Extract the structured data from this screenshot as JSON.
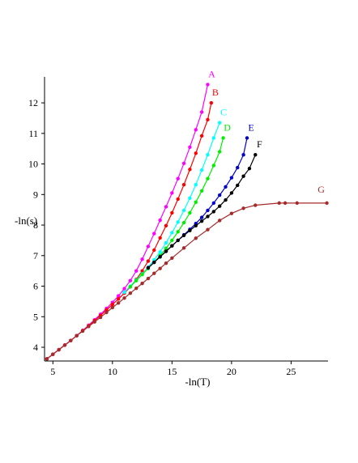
{
  "chart_data": {
    "type": "line",
    "title": "",
    "xlabel": "-ln(T)",
    "ylabel": "-ln(s)",
    "xlim": [
      4.3,
      28.1
    ],
    "ylim": [
      3.55,
      12.85
    ],
    "xticks": [
      5,
      10,
      15,
      20,
      25
    ],
    "yticks": [
      4,
      5,
      6,
      7,
      8,
      9,
      10,
      11,
      12
    ],
    "grid": false,
    "legend": "none (series letters printed next to the end of each curve)",
    "series": [
      {
        "name": "A",
        "color": "#ff00ff",
        "points": [
          [
            4.5,
            3.62
          ],
          [
            5.0,
            3.77
          ],
          [
            5.5,
            3.92
          ],
          [
            6.0,
            4.07
          ],
          [
            6.5,
            4.22
          ],
          [
            7.0,
            4.38
          ],
          [
            7.5,
            4.55
          ],
          [
            8.0,
            4.72
          ],
          [
            8.5,
            4.9
          ],
          [
            9.0,
            5.08
          ],
          [
            9.5,
            5.27
          ],
          [
            10.0,
            5.47
          ],
          [
            10.5,
            5.68
          ],
          [
            11.0,
            5.92
          ],
          [
            11.5,
            6.18
          ],
          [
            12.0,
            6.5
          ],
          [
            12.5,
            6.88
          ],
          [
            13.0,
            7.3
          ],
          [
            13.5,
            7.72
          ],
          [
            14.0,
            8.16
          ],
          [
            14.5,
            8.6
          ],
          [
            15.0,
            9.05
          ],
          [
            15.5,
            9.52
          ],
          [
            16.0,
            10.02
          ],
          [
            16.5,
            10.55
          ],
          [
            17.0,
            11.12
          ],
          [
            17.5,
            11.7
          ],
          [
            18.0,
            12.6
          ]
        ]
      },
      {
        "name": "B",
        "color": "#ff0000",
        "points": [
          [
            4.5,
            3.62
          ],
          [
            5.0,
            3.77
          ],
          [
            5.5,
            3.92
          ],
          [
            6.0,
            4.07
          ],
          [
            6.5,
            4.22
          ],
          [
            7.0,
            4.38
          ],
          [
            7.5,
            4.54
          ],
          [
            8.0,
            4.7
          ],
          [
            8.5,
            4.87
          ],
          [
            9.0,
            5.04
          ],
          [
            9.5,
            5.22
          ],
          [
            10.0,
            5.4
          ],
          [
            10.5,
            5.58
          ],
          [
            11.0,
            5.77
          ],
          [
            11.5,
            5.98
          ],
          [
            12.0,
            6.22
          ],
          [
            12.5,
            6.5
          ],
          [
            13.0,
            6.82
          ],
          [
            13.5,
            7.18
          ],
          [
            14.0,
            7.58
          ],
          [
            14.5,
            7.98
          ],
          [
            15.0,
            8.4
          ],
          [
            15.5,
            8.85
          ],
          [
            16.0,
            9.32
          ],
          [
            16.5,
            9.82
          ],
          [
            17.0,
            10.35
          ],
          [
            17.5,
            10.92
          ],
          [
            18.0,
            11.45
          ],
          [
            18.3,
            12.0
          ]
        ]
      },
      {
        "name": "C",
        "color": "#00ffff",
        "points": [
          [
            11.0,
            5.8
          ],
          [
            11.5,
            6.0
          ],
          [
            12.0,
            6.2
          ],
          [
            12.5,
            6.4
          ],
          [
            13.0,
            6.62
          ],
          [
            13.5,
            6.86
          ],
          [
            14.0,
            7.12
          ],
          [
            14.5,
            7.42
          ],
          [
            15.0,
            7.75
          ],
          [
            15.5,
            8.1
          ],
          [
            16.0,
            8.48
          ],
          [
            16.5,
            8.88
          ],
          [
            17.0,
            9.32
          ],
          [
            17.5,
            9.8
          ],
          [
            18.0,
            10.3
          ],
          [
            18.5,
            10.85
          ],
          [
            19.0,
            11.35
          ]
        ]
      },
      {
        "name": "D",
        "color": "#00ee00",
        "points": [
          [
            11.5,
            5.98
          ],
          [
            12.0,
            6.18
          ],
          [
            12.5,
            6.38
          ],
          [
            13.0,
            6.58
          ],
          [
            13.5,
            6.78
          ],
          [
            14.0,
            7.0
          ],
          [
            14.5,
            7.24
          ],
          [
            15.0,
            7.5
          ],
          [
            15.5,
            7.78
          ],
          [
            16.0,
            8.08
          ],
          [
            16.5,
            8.4
          ],
          [
            17.0,
            8.75
          ],
          [
            17.5,
            9.12
          ],
          [
            18.0,
            9.52
          ],
          [
            18.5,
            9.95
          ],
          [
            19.0,
            10.4
          ],
          [
            19.3,
            10.85
          ]
        ]
      },
      {
        "name": "E",
        "color": "#0000cc",
        "points": [
          [
            13.0,
            6.6
          ],
          [
            13.5,
            6.78
          ],
          [
            14.0,
            6.96
          ],
          [
            14.5,
            7.14
          ],
          [
            15.0,
            7.32
          ],
          [
            15.5,
            7.5
          ],
          [
            16.0,
            7.68
          ],
          [
            16.5,
            7.86
          ],
          [
            17.0,
            8.05
          ],
          [
            17.5,
            8.25
          ],
          [
            18.0,
            8.48
          ],
          [
            18.5,
            8.72
          ],
          [
            19.0,
            8.98
          ],
          [
            19.5,
            9.25
          ],
          [
            20.0,
            9.55
          ],
          [
            20.5,
            9.88
          ],
          [
            21.0,
            10.3
          ],
          [
            21.3,
            10.85
          ]
        ]
      },
      {
        "name": "F",
        "color": "#000000",
        "points": [
          [
            13.0,
            6.6
          ],
          [
            13.5,
            6.78
          ],
          [
            14.0,
            6.96
          ],
          [
            14.5,
            7.14
          ],
          [
            15.0,
            7.32
          ],
          [
            15.5,
            7.5
          ],
          [
            16.0,
            7.66
          ],
          [
            16.5,
            7.82
          ],
          [
            17.0,
            7.98
          ],
          [
            17.5,
            8.13
          ],
          [
            18.0,
            8.28
          ],
          [
            18.5,
            8.44
          ],
          [
            19.0,
            8.62
          ],
          [
            19.5,
            8.82
          ],
          [
            20.0,
            9.05
          ],
          [
            20.5,
            9.3
          ],
          [
            21.0,
            9.6
          ],
          [
            21.5,
            9.85
          ],
          [
            22.0,
            10.3
          ]
        ]
      },
      {
        "name": "G",
        "color": "#a52a2a",
        "points": [
          [
            4.5,
            3.62
          ],
          [
            5.0,
            3.77
          ],
          [
            5.5,
            3.92
          ],
          [
            6.0,
            4.07
          ],
          [
            6.5,
            4.22
          ],
          [
            7.0,
            4.38
          ],
          [
            7.5,
            4.53
          ],
          [
            8.0,
            4.68
          ],
          [
            8.5,
            4.83
          ],
          [
            9.0,
            4.98
          ],
          [
            9.5,
            5.14
          ],
          [
            10.0,
            5.3
          ],
          [
            10.5,
            5.45
          ],
          [
            11.0,
            5.61
          ],
          [
            11.5,
            5.77
          ],
          [
            12.0,
            5.93
          ],
          [
            12.5,
            6.09
          ],
          [
            13.0,
            6.25
          ],
          [
            13.5,
            6.42
          ],
          [
            14.0,
            6.58
          ],
          [
            14.5,
            6.75
          ],
          [
            15.0,
            6.92
          ],
          [
            16.0,
            7.25
          ],
          [
            17.0,
            7.57
          ],
          [
            18.0,
            7.85
          ],
          [
            19.0,
            8.15
          ],
          [
            20.0,
            8.38
          ],
          [
            21.0,
            8.55
          ],
          [
            22.0,
            8.65
          ],
          [
            24.0,
            8.72
          ],
          [
            24.5,
            8.72
          ],
          [
            25.5,
            8.72
          ],
          [
            28.0,
            8.72
          ]
        ]
      }
    ]
  }
}
